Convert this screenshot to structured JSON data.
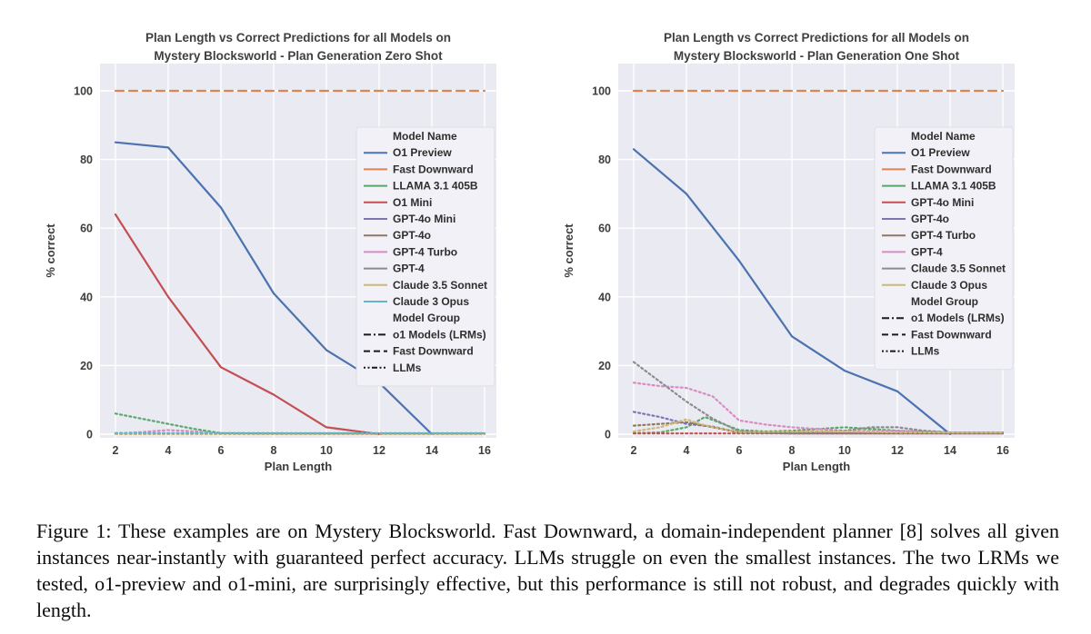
{
  "figure": {
    "caption": "Figure 1: These examples are on Mystery Blocksworld. Fast Downward, a domain-independent planner [8] solves all given instances near-instantly with guaranteed perfect accuracy. LLMs struggle on even the smallest instances. The two LRMs we tested, o1-preview and o1-mini, are surprisingly effective, but this performance is still not robust, and degrades quickly with length."
  },
  "style": {
    "page_bg": "#ffffff",
    "plot_bg": "#eaeaf2",
    "grid_color": "#ffffff",
    "title_color": "#3f3f3f",
    "tick_color": "#3d3d3d",
    "label_color": "#3a3a3a",
    "legend_bg": "#f1f1f7",
    "legend_border": "#dddde6",
    "legend_text": "#2e2e2e",
    "group_swatch_color": "#1a1a1a"
  },
  "chart_data": [
    {
      "type": "line",
      "title_line1": "Plan Length vs Correct Predictions for all Models on",
      "title_line2": "Mystery Blocksworld - Plan Generation Zero Shot",
      "xlabel": "Plan Length",
      "ylabel": "% correct",
      "xticks": [
        2,
        4,
        6,
        8,
        10,
        12,
        14,
        16
      ],
      "yticks": [
        0,
        20,
        40,
        60,
        80,
        100
      ],
      "xlim": [
        0.8,
        16.9
      ],
      "ylim": [
        0,
        108
      ],
      "grid": true,
      "legend_position": "center right",
      "legend": {
        "models_title": "Model Name",
        "groups_title": "Model Group",
        "groups": [
          {
            "label": "o1 Models (LRMs)",
            "dash": "dashdot"
          },
          {
            "label": "Fast Downward",
            "dash": "dashed"
          },
          {
            "label": "LLMs",
            "dash": "dashdotdot"
          }
        ]
      },
      "series": [
        {
          "name": "O1 Preview",
          "color": "#4c72b0",
          "line": "solid",
          "x": [
            2,
            4,
            6,
            8,
            10,
            12,
            14
          ],
          "y": [
            85,
            83.5,
            66,
            41,
            24.5,
            15,
            0
          ]
        },
        {
          "name": "Fast Downward",
          "color": "#dd8452",
          "line": "dashed",
          "x": [
            2,
            16
          ],
          "y": [
            100,
            100
          ]
        },
        {
          "name": "LLAMA 3.1 405B",
          "color": "#55a868",
          "line": "dotted",
          "x": [
            2,
            3,
            4,
            5,
            6,
            8,
            10,
            12,
            14,
            16
          ],
          "y": [
            6,
            4.5,
            3,
            1.5,
            0.3,
            0.2,
            0.2,
            0.2,
            0.2,
            0.2
          ]
        },
        {
          "name": "O1 Mini",
          "color": "#c44e52",
          "line": "solid",
          "x": [
            2,
            4,
            6,
            8,
            10,
            11,
            12
          ],
          "y": [
            64,
            40,
            19.5,
            11.5,
            2,
            1,
            0
          ]
        },
        {
          "name": "GPT-4o Mini",
          "color": "#8172b3",
          "line": "dotted",
          "x": [
            2,
            16
          ],
          "y": [
            0.3,
            0.2
          ]
        },
        {
          "name": "GPT-4o",
          "color": "#937860",
          "line": "dotted",
          "x": [
            2,
            16
          ],
          "y": [
            0.1,
            0.1
          ]
        },
        {
          "name": "GPT-4 Turbo",
          "color": "#da8bc3",
          "line": "dotted",
          "x": [
            2,
            3,
            4,
            5,
            6,
            8,
            12,
            16
          ],
          "y": [
            0.2,
            0.6,
            1.2,
            0.8,
            0.2,
            0.1,
            0.1,
            0.1
          ]
        },
        {
          "name": "GPT-4",
          "color": "#8c8c8c",
          "line": "dotted",
          "x": [
            2,
            16
          ],
          "y": [
            0.1,
            0.1
          ]
        },
        {
          "name": "Claude 3.5 Sonnet",
          "color": "#ccb974",
          "line": "dotted",
          "x": [
            2,
            16
          ],
          "y": [
            0.1,
            0.1
          ]
        },
        {
          "name": "Claude 3 Opus",
          "color": "#64b5cd",
          "line": "dotted",
          "x": [
            2,
            16
          ],
          "y": [
            0.3,
            0.3
          ]
        }
      ]
    },
    {
      "type": "line",
      "title_line1": "Plan Length vs Correct Predictions for all Models on",
      "title_line2": "Mystery Blocksworld - Plan Generation One Shot",
      "xlabel": "Plan Length",
      "ylabel": "% correct",
      "xticks": [
        2,
        4,
        6,
        8,
        10,
        12,
        14,
        16
      ],
      "yticks": [
        0,
        20,
        40,
        60,
        80,
        100
      ],
      "xlim": [
        0.8,
        16.9
      ],
      "ylim": [
        0,
        108
      ],
      "grid": true,
      "legend_position": "center right",
      "legend": {
        "models_title": "Model Name",
        "groups_title": "Model Group",
        "groups": [
          {
            "label": "o1 Models (LRMs)",
            "dash": "dashdot"
          },
          {
            "label": "Fast Downward",
            "dash": "dashed"
          },
          {
            "label": "LLMs",
            "dash": "dashdotdot"
          }
        ]
      },
      "series": [
        {
          "name": "O1 Preview",
          "color": "#4c72b0",
          "line": "solid",
          "x": [
            2,
            4,
            6,
            8,
            10,
            12,
            14
          ],
          "y": [
            83,
            70,
            50.5,
            28.5,
            18.5,
            12.5,
            0
          ]
        },
        {
          "name": "Fast Downward",
          "color": "#dd8452",
          "line": "dashed",
          "x": [
            2,
            16
          ],
          "y": [
            100,
            100
          ]
        },
        {
          "name": "LLAMA 3.1 405B",
          "color": "#55a868",
          "line": "dotted",
          "x": [
            2,
            3,
            4,
            4.7,
            6,
            7,
            8,
            9,
            10,
            11,
            12,
            14,
            16
          ],
          "y": [
            0.3,
            0.5,
            2,
            5,
            1.2,
            0.8,
            1,
            1.5,
            2,
            1.5,
            1,
            0.5,
            0.5
          ]
        },
        {
          "name": "GPT-4o Mini",
          "color": "#c44e52",
          "line": "dotted",
          "x": [
            2,
            16
          ],
          "y": [
            0.2,
            0.2
          ]
        },
        {
          "name": "GPT-4o",
          "color": "#8172b3",
          "line": "dotted",
          "x": [
            2,
            3,
            4,
            5,
            6,
            8,
            10,
            16
          ],
          "y": [
            6.5,
            5,
            3,
            2.2,
            0.5,
            0.2,
            0.2,
            0.2
          ]
        },
        {
          "name": "GPT-4 Turbo",
          "color": "#937860",
          "line": "dotted",
          "x": [
            2,
            3,
            4,
            5,
            6,
            8,
            16
          ],
          "y": [
            2.5,
            3,
            3.5,
            2,
            0.5,
            0.2,
            0.2
          ]
        },
        {
          "name": "GPT-4",
          "color": "#da8bc3",
          "line": "dotted",
          "x": [
            2,
            3,
            4,
            5,
            6,
            7,
            8,
            10,
            12,
            14,
            16
          ],
          "y": [
            15,
            14,
            13.5,
            11,
            4,
            2.8,
            2,
            1,
            1,
            0.5,
            0.5
          ]
        },
        {
          "name": "Claude 3.5 Sonnet",
          "color": "#8c8c8c",
          "line": "dotted",
          "x": [
            2,
            4,
            5,
            6,
            8,
            10,
            11,
            12,
            13,
            14,
            16
          ],
          "y": [
            21,
            9.5,
            4.5,
            0.8,
            0.5,
            1,
            2,
            2,
            1,
            0.5,
            0.5
          ]
        },
        {
          "name": "Claude 3 Opus",
          "color": "#ccb974",
          "line": "dotted",
          "x": [
            2,
            3,
            4,
            4.5,
            5,
            6,
            8,
            10,
            12,
            14,
            16
          ],
          "y": [
            0.8,
            2,
            4.3,
            3,
            2,
            0.6,
            0.8,
            0.8,
            0.5,
            0.5,
            0.5
          ]
        }
      ]
    }
  ]
}
